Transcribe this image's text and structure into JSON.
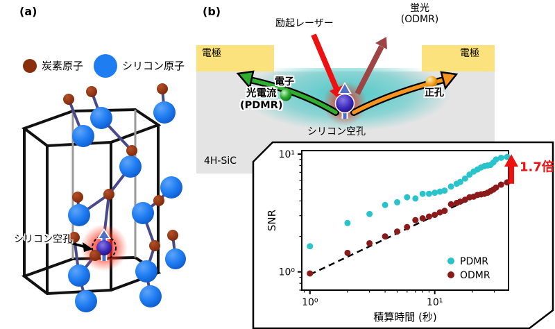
{
  "panel_a": {
    "label": "(a)",
    "legend": {
      "carbon_label": "炭素原子",
      "silicon_label": "シリコン原子"
    },
    "vacancy_label": "シリコン空孔",
    "colors": {
      "carbon": "#8a2f0e",
      "silicon": "#1f7df2",
      "vacancy_glow": "#ff1a0a"
    }
  },
  "panel_b": {
    "label": "(b)",
    "laser_label": "励起レーザー",
    "fluorescence_label_line1": "蛍光",
    "fluorescence_label_line2": "(ODMR)",
    "electrode_left_label": "電極",
    "electrode_right_label": "電極",
    "electron_label": "電子",
    "hole_label": "正孔",
    "photocurrent_label_line1": "光電流",
    "photocurrent_label_line2": "(PDMR)",
    "vacancy_label": "シリコン空孔",
    "substrate_label": "4H-SiC",
    "colors": {
      "electrode": "#fbe27d",
      "substrate": "#e4e4e4",
      "carrier_glow": "#46c6c6",
      "laser_arrow": "#ee1111",
      "fluorescence_arrow": "#9e4444",
      "electron_arrow": "#2fae2f",
      "hole_arrow": "#f7941d",
      "vacancy_sphere": "#3928b8"
    }
  },
  "chart_data": {
    "type": "scatter",
    "title": "",
    "xlabel": "積算時間 (秒)",
    "ylabel": "SNR",
    "xscale": "log",
    "yscale": "log",
    "xlim": [
      0.86,
      39
    ],
    "ylim": [
      0.7,
      10.7
    ],
    "grid": false,
    "legend_position": "lower right",
    "x": [
      1,
      2,
      3,
      4,
      5,
      6,
      7,
      8,
      9,
      10,
      11,
      12,
      13.5,
      15,
      16,
      17.5,
      19,
      20.5,
      22,
      23.5,
      25,
      26.5,
      28,
      29.5,
      31,
      34,
      38
    ],
    "series": [
      {
        "name": "PDMR",
        "color": "#29c4cb",
        "values": [
          1.65,
          2.6,
          3.1,
          3.7,
          3.9,
          4.3,
          4.2,
          4.6,
          4.6,
          4.7,
          4.8,
          4.9,
          5.3,
          5.6,
          5.8,
          6.2,
          6.7,
          7.1,
          7.4,
          7.7,
          7.9,
          8.0,
          8.1,
          8.5,
          9.0,
          9.3,
          9.45
        ]
      },
      {
        "name": "ODMR",
        "color": "#8b1a1a",
        "values": [
          0.97,
          1.45,
          1.75,
          2.0,
          2.2,
          2.4,
          2.75,
          2.85,
          2.95,
          3.05,
          3.2,
          3.3,
          3.75,
          3.85,
          3.95,
          4.1,
          4.3,
          4.35,
          4.5,
          4.55,
          4.6,
          4.7,
          4.85,
          5.0,
          5.2,
          5.5,
          5.75
        ]
      }
    ],
    "fit_line": {
      "style": "dashed",
      "color": "#000000",
      "coeff": 0.95,
      "exponent": 0.5,
      "from_x": 1,
      "to_x": 38
    },
    "annotation": {
      "text": "1.7倍",
      "color": "#ee1111"
    }
  }
}
